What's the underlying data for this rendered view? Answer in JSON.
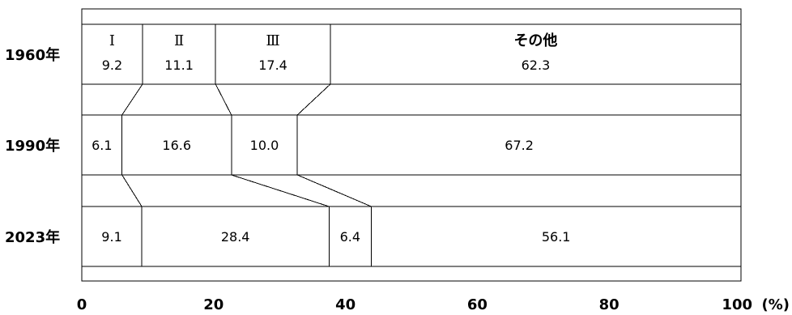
{
  "chart_data": {
    "type": "bar",
    "orientation": "horizontal",
    "stacked": true,
    "unit": "(%)",
    "xlim": [
      0,
      100
    ],
    "xticks": [
      0,
      20,
      40,
      60,
      80,
      100
    ],
    "categories": [
      "1960年",
      "1990年",
      "2023年"
    ],
    "series": [
      {
        "name": "Ⅰ",
        "values": [
          9.2,
          6.1,
          9.1
        ]
      },
      {
        "name": "Ⅱ",
        "values": [
          11.1,
          16.6,
          28.4
        ]
      },
      {
        "name": "Ⅲ",
        "values": [
          17.4,
          10.0,
          6.4
        ]
      },
      {
        "name": "その他",
        "values": [
          62.3,
          67.2,
          56.1
        ]
      }
    ],
    "value_labels": [
      [
        "9.2",
        "11.1",
        "17.4",
        "62.3"
      ],
      [
        "6.1",
        "16.6",
        "10.0",
        "67.2"
      ],
      [
        "9.1",
        "28.4",
        "6.4",
        "56.1"
      ]
    ],
    "segment_names_shown_in_row": 0,
    "grid": false
  }
}
